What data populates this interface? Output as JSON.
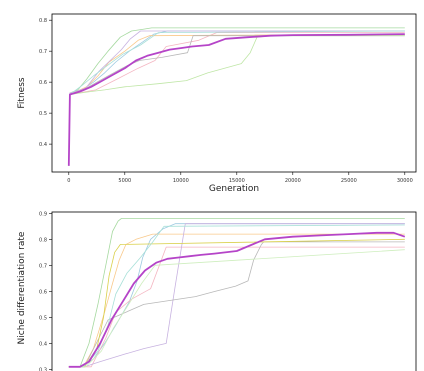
{
  "chart_data": [
    {
      "type": "line",
      "xlabel": "Generation",
      "ylabel": "Fitness",
      "xlim": [
        -1500,
        31000
      ],
      "ylim": [
        0.31,
        0.82
      ],
      "xticks": [
        0,
        5000,
        10000,
        15000,
        20000,
        25000,
        30000
      ],
      "xtick_labels": [
        "0",
        "5000",
        "10000",
        "15000",
        "20000",
        "25000",
        "30000"
      ],
      "yticks": [
        0.3,
        0.4,
        0.5,
        0.6,
        0.7,
        0.8
      ],
      "ytick_labels": [
        "0.3",
        "0.4",
        "0.5",
        "0.6",
        "0.7",
        "0.8"
      ],
      "grid": false,
      "series": [
        {
          "color": "#a6d9a0",
          "x": [
            0,
            100,
            800,
            1600,
            2600,
            3500,
            4600,
            5600,
            6500,
            7400,
            30000
          ],
          "y": [
            0.34,
            0.565,
            0.575,
            0.61,
            0.66,
            0.7,
            0.745,
            0.765,
            0.77,
            0.775,
            0.775
          ]
        },
        {
          "color": "#9ecae1",
          "x": [
            0,
            100,
            1200,
            2200,
            3200,
            4200,
            5400,
            6600,
            7600,
            8800,
            30000
          ],
          "y": [
            0.33,
            0.56,
            0.575,
            0.6,
            0.63,
            0.665,
            0.7,
            0.73,
            0.755,
            0.765,
            0.765
          ]
        },
        {
          "color": "#f4b6c2",
          "x": [
            0,
            100,
            2400,
            4300,
            6200,
            7700,
            8700,
            11600,
            13200,
            30000
          ],
          "y": [
            0.34,
            0.56,
            0.575,
            0.61,
            0.645,
            0.67,
            0.715,
            0.735,
            0.76,
            0.76
          ]
        },
        {
          "color": "#f9c98b",
          "x": [
            0,
            100,
            1600,
            2600,
            3600,
            5000,
            6200,
            7200,
            30000
          ],
          "y": [
            0.33,
            0.56,
            0.585,
            0.62,
            0.665,
            0.7,
            0.735,
            0.75,
            0.755
          ]
        },
        {
          "color": "#c7b2e0",
          "x": [
            0,
            100,
            1500,
            2700,
            3700,
            4700,
            5500,
            6400,
            30000
          ],
          "y": [
            0.33,
            0.565,
            0.58,
            0.635,
            0.67,
            0.705,
            0.74,
            0.765,
            0.765
          ]
        },
        {
          "color": "#b8b8b8",
          "x": [
            0,
            100,
            1300,
            2500,
            3500,
            4500,
            5300,
            6300,
            8300,
            10600,
            11100,
            30000
          ],
          "y": [
            0.33,
            0.56,
            0.575,
            0.6,
            0.62,
            0.64,
            0.655,
            0.67,
            0.68,
            0.695,
            0.75,
            0.75
          ]
        },
        {
          "color": "#bfe6a6",
          "x": [
            0,
            100,
            2000,
            3200,
            5000,
            8000,
            10500,
            12400,
            15400,
            16200,
            16800,
            18000,
            30000
          ],
          "y": [
            0.33,
            0.56,
            0.57,
            0.575,
            0.585,
            0.595,
            0.605,
            0.63,
            0.66,
            0.695,
            0.745,
            0.75,
            0.75
          ]
        },
        {
          "color": "#a8e0d8",
          "x": [
            0,
            100,
            1200,
            2200,
            3500,
            4800,
            6400,
            8000,
            30000
          ],
          "y": [
            0.33,
            0.56,
            0.59,
            0.62,
            0.655,
            0.69,
            0.72,
            0.76,
            0.765
          ]
        },
        {
          "color": "#b544c8",
          "x": [
            0,
            100,
            1000,
            2000,
            3000,
            4000,
            5000,
            6000,
            7000,
            8000,
            9000,
            10000,
            11000,
            12500,
            14000,
            16000,
            18000,
            20000,
            25000,
            30000
          ],
          "y": [
            0.33,
            0.56,
            0.57,
            0.585,
            0.605,
            0.625,
            0.645,
            0.67,
            0.685,
            0.695,
            0.705,
            0.71,
            0.715,
            0.72,
            0.74,
            0.745,
            0.75,
            0.752,
            0.753,
            0.755
          ],
          "highlight": true
        }
      ]
    },
    {
      "type": "line",
      "xlabel": "",
      "ylabel": "Niche differentiation rate",
      "xlim": [
        -1500,
        31000
      ],
      "ylim": [
        0.29,
        0.905
      ],
      "yticks": [
        0.3,
        0.4,
        0.5,
        0.6,
        0.7,
        0.8,
        0.9
      ],
      "ytick_labels": [
        "0.3",
        "0.4",
        "0.5",
        "0.6",
        "0.7",
        "0.8",
        "0.9"
      ],
      "grid": false,
      "series": [
        {
          "color": "#a6d9a0",
          "x": [
            0,
            1000,
            1800,
            2600,
            3300,
            3900,
            4400,
            4700,
            30000
          ],
          "y": [
            0.31,
            0.31,
            0.4,
            0.55,
            0.7,
            0.83,
            0.87,
            0.88,
            0.88
          ]
        },
        {
          "color": "#9ecae1",
          "x": [
            0,
            1200,
            2200,
            3200,
            4200,
            5400,
            6100,
            6600,
            7300,
            8400,
            9500,
            30000
          ],
          "y": [
            0.31,
            0.31,
            0.34,
            0.4,
            0.47,
            0.56,
            0.64,
            0.73,
            0.8,
            0.84,
            0.86,
            0.86
          ]
        },
        {
          "color": "#f4b6c2",
          "x": [
            0,
            2000,
            3300,
            4200,
            5600,
            7300,
            8700,
            30000
          ],
          "y": [
            0.31,
            0.31,
            0.42,
            0.52,
            0.57,
            0.61,
            0.77,
            0.77
          ]
        },
        {
          "color": "#f9c98b",
          "x": [
            0,
            1300,
            2200,
            3200,
            3900,
            4500,
            5100,
            6000,
            7500,
            30000
          ],
          "y": [
            0.31,
            0.31,
            0.38,
            0.52,
            0.63,
            0.72,
            0.78,
            0.8,
            0.82,
            0.82
          ]
        },
        {
          "color": "#c7b2e0",
          "x": [
            0,
            1400,
            2800,
            5100,
            6700,
            8700,
            9500,
            10400,
            30000
          ],
          "y": [
            0.31,
            0.31,
            0.33,
            0.36,
            0.38,
            0.4,
            0.62,
            0.86,
            0.86
          ]
        },
        {
          "color": "#b8b8b8",
          "x": [
            0,
            1400,
            3500,
            6700,
            11300,
            13100,
            14900,
            16000,
            16500,
            17200,
            17400,
            30000
          ],
          "y": [
            0.31,
            0.31,
            0.49,
            0.55,
            0.58,
            0.6,
            0.62,
            0.64,
            0.72,
            0.78,
            0.79,
            0.79
          ]
        },
        {
          "color": "#d9d04a",
          "x": [
            0,
            1400,
            2500,
            3100,
            3600,
            4100,
            4600,
            30000
          ],
          "y": [
            0.31,
            0.31,
            0.38,
            0.5,
            0.66,
            0.75,
            0.78,
            0.8
          ]
        },
        {
          "color": "#a8e0d8",
          "x": [
            0,
            1300,
            2600,
            3500,
            4200,
            5200,
            6400,
            7500,
            8500,
            30000
          ],
          "y": [
            0.31,
            0.31,
            0.37,
            0.47,
            0.59,
            0.67,
            0.73,
            0.79,
            0.85,
            0.855
          ]
        },
        {
          "color": "#cfeebf",
          "x": [
            0,
            1500,
            2900,
            4000,
            5200,
            6500,
            7700,
            30000
          ],
          "y": [
            0.31,
            0.31,
            0.37,
            0.46,
            0.54,
            0.63,
            0.7,
            0.76
          ]
        },
        {
          "color": "#b544c8",
          "x": [
            0,
            1000,
            1800,
            2800,
            3800,
            4800,
            5800,
            6800,
            7800,
            8800,
            9800,
            10800,
            11800,
            13000,
            15000,
            17500,
            20000,
            22500,
            25000,
            27500,
            29000,
            30000
          ],
          "y": [
            0.31,
            0.31,
            0.33,
            0.4,
            0.49,
            0.56,
            0.63,
            0.68,
            0.71,
            0.725,
            0.73,
            0.735,
            0.74,
            0.745,
            0.755,
            0.8,
            0.81,
            0.815,
            0.82,
            0.825,
            0.825,
            0.81
          ],
          "highlight": true
        }
      ]
    }
  ]
}
